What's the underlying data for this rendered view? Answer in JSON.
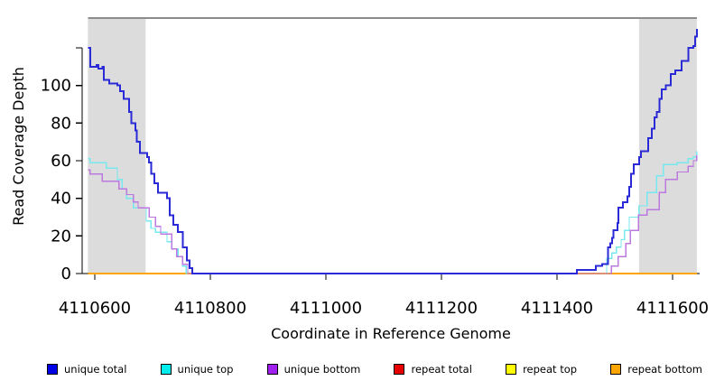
{
  "figure": {
    "x_axis_title": "Coordinate in Reference Genome",
    "y_axis_title": "Read Coverage Depth",
    "background": "#ffffff",
    "axis_color": "#000000"
  },
  "chart_data": {
    "type": "line",
    "subtype": "step-coverage",
    "title": "",
    "xlabel": "Coordinate in Reference Genome",
    "ylabel": "Read Coverage Depth",
    "xlim": [
      4110588,
      4111642
    ],
    "ylim": [
      0,
      136
    ],
    "grid": false,
    "x_ticks": [
      4110600,
      4110800,
      4111000,
      4111200,
      4111400,
      4111600
    ],
    "y_ticks_labeled": [
      0,
      20,
      40,
      60,
      80,
      100
    ],
    "y_ticks_unlabeled": [
      120
    ],
    "top_boundary_line": {
      "color": "#8c8c8c"
    },
    "highlight_regions": [
      {
        "name": "left-shaded-region",
        "x0": 4110588,
        "x1": 4110688,
        "color": "#dcdcdc"
      },
      {
        "name": "right-shaded-region",
        "x0": 4111542,
        "x1": 4111642,
        "color": "#dcdcdc"
      }
    ],
    "series": [
      {
        "name": "repeat total",
        "color": "#dd0000",
        "width": 1.4,
        "points": [
          [
            4110588,
            0
          ],
          [
            4111642,
            0
          ]
        ]
      },
      {
        "name": "repeat top",
        "color": "#ffff00",
        "width": 1.4,
        "points": [
          [
            4110588,
            0
          ],
          [
            4111642,
            0
          ]
        ]
      },
      {
        "name": "repeat bottom",
        "color": "#ffa500",
        "width": 1.8,
        "points": [
          [
            4110588,
            0
          ],
          [
            4111642,
            0
          ]
        ]
      },
      {
        "name": "unique top",
        "color": "#76e9ef",
        "width": 1.4,
        "points": [
          [
            4110588,
            61
          ],
          [
            4110592,
            59
          ],
          [
            4110620,
            56
          ],
          [
            4110639,
            50
          ],
          [
            4110647,
            45
          ],
          [
            4110655,
            40
          ],
          [
            4110667,
            35
          ],
          [
            4110689,
            28
          ],
          [
            4110697,
            24
          ],
          [
            4110705,
            22
          ],
          [
            4110725,
            17
          ],
          [
            4110733,
            13
          ],
          [
            4110744,
            9
          ],
          [
            4110752,
            4
          ],
          [
            4110758,
            0
          ],
          [
            4111486,
            8
          ],
          [
            4111495,
            11
          ],
          [
            4111503,
            14
          ],
          [
            4111511,
            18
          ],
          [
            4111517,
            23
          ],
          [
            4111525,
            30
          ],
          [
            4111542,
            36
          ],
          [
            4111556,
            43
          ],
          [
            4111572,
            52
          ],
          [
            4111584,
            58
          ],
          [
            4111608,
            59
          ],
          [
            4111627,
            61
          ],
          [
            4111636,
            62
          ],
          [
            4111642,
            65
          ]
        ]
      },
      {
        "name": "unique bottom",
        "color": "#bb79e0",
        "width": 1.4,
        "points": [
          [
            4110588,
            55
          ],
          [
            4110592,
            53
          ],
          [
            4110613,
            49
          ],
          [
            4110642,
            45
          ],
          [
            4110655,
            42
          ],
          [
            4110667,
            38
          ],
          [
            4110675,
            35
          ],
          [
            4110694,
            30
          ],
          [
            4110705,
            25
          ],
          [
            4110714,
            21
          ],
          [
            4110733,
            13
          ],
          [
            4110742,
            9
          ],
          [
            4110752,
            5
          ],
          [
            4110761,
            0
          ],
          [
            4111494,
            4
          ],
          [
            4111506,
            9
          ],
          [
            4111519,
            16
          ],
          [
            4111527,
            23
          ],
          [
            4111541,
            31
          ],
          [
            4111556,
            34
          ],
          [
            4111577,
            43
          ],
          [
            4111588,
            50
          ],
          [
            4111608,
            54
          ],
          [
            4111627,
            57
          ],
          [
            4111636,
            60
          ],
          [
            4111642,
            63
          ]
        ]
      },
      {
        "name": "unique total",
        "color": "#2a2ad7",
        "width": 2,
        "points": [
          [
            4110588,
            120
          ],
          [
            4110592,
            110
          ],
          [
            4110603,
            111
          ],
          [
            4110606,
            109
          ],
          [
            4110613,
            110
          ],
          [
            4110616,
            103
          ],
          [
            4110625,
            101
          ],
          [
            4110639,
            100
          ],
          [
            4110644,
            97
          ],
          [
            4110650,
            93
          ],
          [
            4110659,
            86
          ],
          [
            4110663,
            80
          ],
          [
            4110670,
            76
          ],
          [
            4110673,
            70
          ],
          [
            4110678,
            64
          ],
          [
            4110691,
            62
          ],
          [
            4110694,
            59
          ],
          [
            4110698,
            53
          ],
          [
            4110703,
            48
          ],
          [
            4110709,
            43
          ],
          [
            4110725,
            40
          ],
          [
            4110730,
            31
          ],
          [
            4110736,
            26
          ],
          [
            4110744,
            22
          ],
          [
            4110752,
            14
          ],
          [
            4110759,
            7
          ],
          [
            4110764,
            3
          ],
          [
            4110769,
            0
          ],
          [
            4111434,
            2
          ],
          [
            4111467,
            4
          ],
          [
            4111478,
            5
          ],
          [
            4111488,
            14
          ],
          [
            4111492,
            16
          ],
          [
            4111495,
            19
          ],
          [
            4111498,
            23
          ],
          [
            4111505,
            27
          ],
          [
            4111506,
            35
          ],
          [
            4111514,
            38
          ],
          [
            4111522,
            41
          ],
          [
            4111525,
            46
          ],
          [
            4111528,
            53
          ],
          [
            4111533,
            58
          ],
          [
            4111542,
            62
          ],
          [
            4111545,
            65
          ],
          [
            4111558,
            72
          ],
          [
            4111564,
            77
          ],
          [
            4111569,
            83
          ],
          [
            4111573,
            86
          ],
          [
            4111577,
            93
          ],
          [
            4111581,
            98
          ],
          [
            4111588,
            100
          ],
          [
            4111597,
            106
          ],
          [
            4111605,
            108
          ],
          [
            4111616,
            113
          ],
          [
            4111627,
            120
          ],
          [
            4111636,
            121
          ],
          [
            4111639,
            126
          ],
          [
            4111642,
            130
          ]
        ]
      }
    ],
    "legend_position": "bottom"
  },
  "legend": {
    "items": [
      {
        "label": "unique total",
        "color": "#0000e6"
      },
      {
        "label": "unique top",
        "color": "#00eded"
      },
      {
        "label": "unique bottom",
        "color": "#a020f0"
      },
      {
        "label": "repeat total",
        "color": "#e60000"
      },
      {
        "label": "repeat top",
        "color": "#ffff00"
      },
      {
        "label": "repeat bottom",
        "color": "#ffa500"
      }
    ]
  }
}
